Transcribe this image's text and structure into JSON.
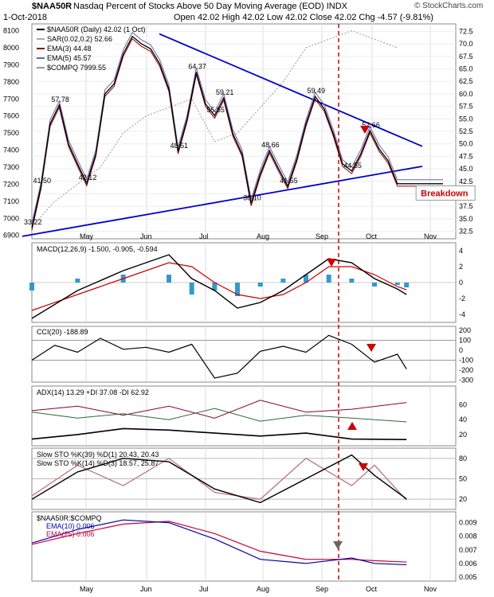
{
  "header": {
    "symbol": "$NAA50R",
    "description": "Nasdaq Percent of Stocks Above 50 Day Moving Average (EOD)  INDX",
    "date": "1-Oct-2018",
    "ohlc": "Open 42.02  High 42.02  Low 42.02  Close 42.02  Chg -4.57 (-9.81%)",
    "credit": "© StockCharts.com"
  },
  "chart_data": [
    {
      "type": "line",
      "panel": "price",
      "title": "$NAA50R Nasdaq Percent of Stocks Above 50 Day Moving Average (EOD)",
      "x_ticks": [
        "May",
        "Jun",
        "Jul",
        "Aug",
        "Sep",
        "Oct",
        "Nov"
      ],
      "y_ticks_right": [
        32.5,
        35.0,
        37.5,
        40.0,
        42.5,
        45.0,
        47.5,
        50.0,
        52.5,
        55.0,
        57.5,
        60.0,
        62.5,
        65.0,
        67.5,
        70.0,
        72.5
      ],
      "y_ticks_left": [
        6900,
        7000,
        7100,
        7200,
        7300,
        7400,
        7500,
        7600,
        7700,
        7800,
        7900,
        8000,
        8100
      ],
      "ylim": [
        31,
        74
      ],
      "legend": [
        "$NAA50R (Daily) 42.02 (1 Oct)",
        "SAR(0.02,0.2) 52.66",
        "EMA(3) 44.48",
        "EMA(5) 45.57",
        "$COMPQ 7999.55"
      ],
      "series": [
        {
          "name": "$NAA50R",
          "x": [
            0,
            4,
            8,
            12,
            16,
            20,
            24,
            28,
            32,
            36,
            40,
            44,
            48,
            52,
            56,
            60,
            64,
            68,
            72,
            76,
            80,
            84,
            88,
            92,
            96,
            100,
            104,
            108,
            112,
            116,
            120,
            124,
            128,
            132,
            136,
            140,
            144,
            148,
            152,
            156,
            160,
            164,
            168,
            172,
            176,
            180
          ],
          "values": [
            33.22,
            41.5,
            54.0,
            57.78,
            50.0,
            46.0,
            42.12,
            48.0,
            60.0,
            62.0,
            68.0,
            71.5,
            70.0,
            69.0,
            66.0,
            61.0,
            48.51,
            55.0,
            64.37,
            58.0,
            55.65,
            59.21,
            52.0,
            48.0,
            38.1,
            44.0,
            48.66,
            45.0,
            41.55,
            47.0,
            54.0,
            59.49,
            57.0,
            52.0,
            46.0,
            44.55,
            48.0,
            52.66,
            49.0,
            46.59,
            42.02,
            42.02,
            42.02,
            42.02,
            42.02,
            42.02
          ]
        },
        {
          "name": "$COMPQ",
          "x": [
            0,
            10,
            20,
            30,
            40,
            50,
            60,
            70,
            80,
            90,
            100,
            110,
            120,
            130,
            140,
            150,
            160
          ],
          "values": [
            6950,
            7100,
            7200,
            7300,
            7500,
            7600,
            7650,
            7700,
            7450,
            7500,
            7650,
            7800,
            8000,
            8050,
            8100,
            8050,
            8000
          ]
        }
      ],
      "annotations": [
        {
          "label": "57.78",
          "x": 12,
          "y": 57.78
        },
        {
          "label": "41.50",
          "x": 4,
          "y": 41.5
        },
        {
          "label": "42.12",
          "x": 24,
          "y": 42.12
        },
        {
          "label": "33.22",
          "x": 0,
          "y": 33.22
        },
        {
          "label": "64.37",
          "x": 72,
          "y": 64.37
        },
        {
          "label": "59.21",
          "x": 84,
          "y": 59.21
        },
        {
          "label": "55.65",
          "x": 80,
          "y": 55.65
        },
        {
          "label": "48.51",
          "x": 64,
          "y": 48.51
        },
        {
          "label": "48.66",
          "x": 104,
          "y": 48.66
        },
        {
          "label": "38.10",
          "x": 96,
          "y": 38.1
        },
        {
          "label": "41.55",
          "x": 112,
          "y": 41.55
        },
        {
          "label": "59.49",
          "x": 124,
          "y": 59.49
        },
        {
          "label": "52.66",
          "x": 148,
          "y": 52.66
        },
        {
          "label": "44.55",
          "x": 140,
          "y": 44.55
        },
        {
          "label": "Breakdown",
          "x": 164,
          "y": 40
        }
      ]
    },
    {
      "type": "histogram",
      "panel": "macd",
      "legend": "MACD(12,26,9) -1.500, -0.905, -0.594",
      "y_ticks": [
        4,
        2,
        0,
        -2,
        -4
      ],
      "ylim": [
        -5,
        5
      ],
      "series": [
        {
          "name": "MACD",
          "x": [
            0,
            20,
            40,
            60,
            70,
            80,
            90,
            100,
            110,
            120,
            130,
            140,
            150,
            160,
            164
          ],
          "values": [
            -4.5,
            -1.0,
            1.5,
            3.5,
            0.5,
            -1.0,
            -3.2,
            -2.5,
            -1.0,
            1.0,
            3.0,
            2.5,
            0.5,
            -0.8,
            -1.5
          ]
        },
        {
          "name": "Signal",
          "x": [
            0,
            20,
            40,
            60,
            70,
            80,
            90,
            100,
            110,
            120,
            130,
            140,
            150,
            160,
            164
          ],
          "values": [
            -3.5,
            -1.5,
            0.5,
            2.5,
            2.0,
            0.0,
            -1.5,
            -2.0,
            -1.5,
            0.0,
            2.0,
            2.0,
            1.0,
            -0.5,
            -0.9
          ]
        },
        {
          "name": "Histogram",
          "x": [
            0,
            20,
            40,
            60,
            70,
            80,
            90,
            100,
            110,
            120,
            130,
            140,
            150,
            160,
            164
          ],
          "values": [
            -1.0,
            0.5,
            1.0,
            1.0,
            -1.5,
            -1.0,
            -1.7,
            -0.5,
            0.5,
            1.0,
            1.0,
            0.5,
            -0.5,
            -0.3,
            -0.6
          ]
        }
      ]
    },
    {
      "type": "line",
      "panel": "cci",
      "legend": "CCI(20) -188.89",
      "y_ticks": [
        200,
        100,
        0,
        -100,
        -200,
        -300
      ],
      "ylim": [
        -320,
        240
      ],
      "series": [
        {
          "name": "CCI(20)",
          "x": [
            0,
            10,
            20,
            30,
            40,
            50,
            60,
            70,
            80,
            90,
            100,
            110,
            120,
            130,
            140,
            150,
            160,
            164
          ],
          "values": [
            -100,
            50,
            -20,
            120,
            10,
            30,
            -20,
            60,
            -280,
            -230,
            -10,
            40,
            -20,
            150,
            60,
            -120,
            -40,
            -188.89
          ]
        }
      ]
    },
    {
      "type": "line",
      "panel": "adx",
      "legend": "ADX(14) 13.29  +DI 37.08  -DI 62.92",
      "y_ticks": [
        60,
        40,
        20
      ],
      "ylim": [
        5,
        85
      ],
      "series": [
        {
          "name": "ADX(14)",
          "x": [
            0,
            20,
            40,
            60,
            80,
            100,
            120,
            140,
            164
          ],
          "values": [
            14,
            20,
            28,
            26,
            22,
            18,
            22,
            14,
            13.29
          ]
        },
        {
          "name": "+DI",
          "x": [
            0,
            20,
            40,
            60,
            80,
            100,
            120,
            140,
            164
          ],
          "values": [
            50,
            42,
            48,
            40,
            55,
            38,
            46,
            42,
            37.08
          ]
        },
        {
          "name": "-DI",
          "x": [
            0,
            20,
            40,
            60,
            80,
            100,
            120,
            140,
            164
          ],
          "values": [
            52,
            58,
            46,
            58,
            42,
            66,
            50,
            54,
            62.92
          ]
        }
      ]
    },
    {
      "type": "line",
      "panel": "stoch",
      "legend": "Slow STO %K(39) %D(1) 20.43, 20.43",
      "legend2": "Slow STO %K(14) %D(3) 18.57, 25.87",
      "y_ticks": [
        80,
        50,
        20
      ],
      "ylim": [
        5,
        95
      ],
      "series": [
        {
          "name": "Slow STO %K(39)",
          "x": [
            0,
            20,
            40,
            60,
            80,
            100,
            120,
            140,
            150,
            164
          ],
          "values": [
            20,
            60,
            80,
            75,
            35,
            15,
            50,
            85,
            55,
            20.43
          ]
        },
        {
          "name": "Slow STO %K(14)",
          "x": [
            0,
            20,
            40,
            60,
            80,
            100,
            120,
            140,
            150,
            164
          ],
          "values": [
            25,
            70,
            40,
            80,
            30,
            20,
            80,
            40,
            70,
            18.57
          ]
        }
      ]
    },
    {
      "type": "line",
      "panel": "ratio",
      "legend": "$NAA50R:$COMPQ",
      "legend2": "EMA(10) 0.006",
      "legend3": "EMA(25) 0.006",
      "x_ticks": [
        "May",
        "Jun",
        "Jul",
        "Aug",
        "Sep",
        "Oct",
        "Nov"
      ],
      "y_ticks": [
        0.009,
        0.008,
        0.007,
        0.006,
        0.005
      ],
      "ylim": [
        0.0047,
        0.0098
      ],
      "series": [
        {
          "name": "EMA(10)",
          "x": [
            0,
            20,
            40,
            60,
            80,
            100,
            120,
            140,
            150,
            164
          ],
          "values": [
            0.0075,
            0.0085,
            0.0092,
            0.009,
            0.0078,
            0.0063,
            0.006,
            0.0064,
            0.006,
            0.0059
          ]
        },
        {
          "name": "EMA(25)",
          "x": [
            0,
            20,
            40,
            60,
            80,
            100,
            120,
            140,
            150,
            164
          ],
          "values": [
            0.0074,
            0.0082,
            0.0089,
            0.0091,
            0.0082,
            0.0069,
            0.0063,
            0.0063,
            0.0062,
            0.0061
          ]
        }
      ]
    }
  ],
  "colors": {
    "price_line": "#000000",
    "ema3": "#8b0000",
    "ema5": "#6666aa",
    "sar": "#aaaaaa",
    "compq": "#999999",
    "trendline": "#0000cc",
    "marker": "#cc0000",
    "macd_hist": "#3399cc"
  }
}
